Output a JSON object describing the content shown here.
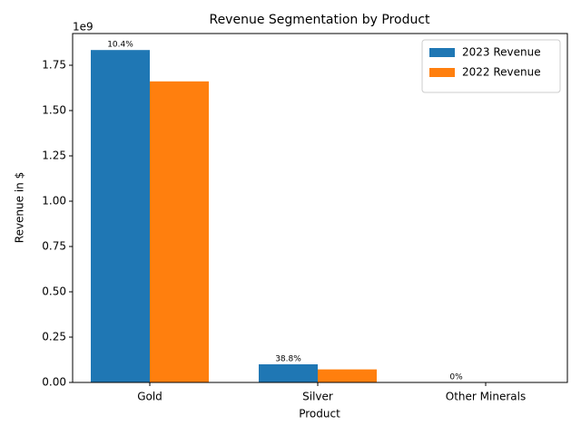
{
  "chart_data": {
    "type": "bar",
    "title": "Revenue Segmentation by Product",
    "x_label": "Product",
    "y_label": "Revenue in $",
    "y_offset_label": "1e9",
    "categories": [
      "Gold",
      "Silver",
      "Other Minerals"
    ],
    "series": [
      {
        "name": "2023 Revenue",
        "color": "#1f77b4",
        "values": [
          1834000000,
          100000000,
          0
        ]
      },
      {
        "name": "2022 Revenue",
        "color": "#ff7f0e",
        "values": [
          1661000000,
          72000000,
          0
        ]
      }
    ],
    "annotations": [
      "10.4%",
      "38.8%",
      "0%"
    ],
    "ylim": [
      0,
      1925000000
    ],
    "yticks": [
      {
        "value": 0,
        "label": "0.00"
      },
      {
        "value": 250000000,
        "label": "0.25"
      },
      {
        "value": 500000000,
        "label": "0.50"
      },
      {
        "value": 750000000,
        "label": "0.75"
      },
      {
        "value": 1000000000,
        "label": "1.00"
      },
      {
        "value": 1250000000,
        "label": "1.25"
      },
      {
        "value": 1500000000,
        "label": "1.50"
      },
      {
        "value": 1750000000,
        "label": "1.75"
      }
    ],
    "legend": "upper right",
    "grid": false
  }
}
